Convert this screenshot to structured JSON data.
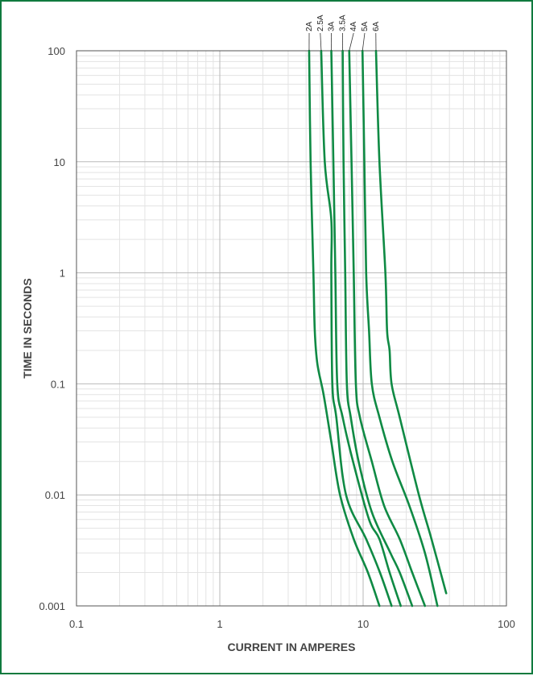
{
  "colors": {
    "border": "#0f7a3e",
    "curve": "#0f8a44",
    "major_grid": "#b9b9b9",
    "minor_grid": "#e3e3e3",
    "text": "#444444"
  },
  "chart_data": {
    "type": "line",
    "xlabel": "CURRENT  IN AMPERES",
    "ylabel": "TIME IN SECONDS",
    "x_scale": "log",
    "y_scale": "log",
    "xlim": [
      0.1,
      100
    ],
    "ylim": [
      0.001,
      100
    ],
    "x_ticks": [
      "0.1",
      "1",
      "10",
      "100"
    ],
    "y_ticks": [
      "0.001",
      "0.01",
      "0.1",
      "1",
      "10",
      "100"
    ],
    "grid": true,
    "series": [
      {
        "name": "2A",
        "points": [
          [
            4.2,
            100
          ],
          [
            4.3,
            10
          ],
          [
            4.5,
            1
          ],
          [
            4.6,
            0.3
          ],
          [
            4.8,
            0.15
          ],
          [
            5.3,
            0.08
          ],
          [
            6.0,
            0.03
          ],
          [
            6.9,
            0.01
          ],
          [
            8.6,
            0.004
          ],
          [
            10.8,
            0.002
          ],
          [
            13.0,
            0.001
          ]
        ]
      },
      {
        "name": "2.5A",
        "points": [
          [
            5.1,
            100
          ],
          [
            5.4,
            10
          ],
          [
            6.0,
            3
          ],
          [
            6.0,
            1
          ],
          [
            6.1,
            0.1
          ],
          [
            6.5,
            0.05
          ],
          [
            7.6,
            0.01
          ],
          [
            10.5,
            0.004
          ],
          [
            13.1,
            0.002
          ],
          [
            15.8,
            0.001
          ]
        ]
      },
      {
        "name": "3A",
        "points": [
          [
            6.0,
            100
          ],
          [
            6.2,
            10
          ],
          [
            6.4,
            1
          ],
          [
            6.6,
            0.1
          ],
          [
            7.2,
            0.05
          ],
          [
            8.5,
            0.02
          ],
          [
            11.0,
            0.006
          ],
          [
            13.0,
            0.004
          ],
          [
            15.3,
            0.002
          ],
          [
            18.3,
            0.001
          ]
        ]
      },
      {
        "name": "3.5A",
        "points": [
          [
            7.2,
            100
          ],
          [
            7.3,
            10
          ],
          [
            7.5,
            1
          ],
          [
            7.7,
            0.1
          ],
          [
            8.2,
            0.05
          ],
          [
            9.3,
            0.02
          ],
          [
            11.5,
            0.007
          ],
          [
            15.5,
            0.003
          ],
          [
            18.0,
            0.002
          ],
          [
            22.0,
            0.001
          ]
        ]
      },
      {
        "name": "4A",
        "points": [
          [
            8.0,
            100
          ],
          [
            8.3,
            10
          ],
          [
            8.6,
            1
          ],
          [
            8.9,
            0.1
          ],
          [
            9.5,
            0.05
          ],
          [
            11.5,
            0.02
          ],
          [
            14.0,
            0.008
          ],
          [
            18.0,
            0.004
          ],
          [
            22.0,
            0.002
          ],
          [
            27.0,
            0.001
          ]
        ]
      },
      {
        "name": "5A",
        "points": [
          [
            9.9,
            100
          ],
          [
            10.2,
            10
          ],
          [
            10.5,
            1
          ],
          [
            11.0,
            0.3
          ],
          [
            11.5,
            0.1
          ],
          [
            13.0,
            0.05
          ],
          [
            16.0,
            0.02
          ],
          [
            21.0,
            0.008
          ],
          [
            27.0,
            0.003
          ],
          [
            33.0,
            0.001
          ]
        ]
      },
      {
        "name": "6A",
        "points": [
          [
            12.3,
            100
          ],
          [
            13.0,
            10
          ],
          [
            14.3,
            1
          ],
          [
            14.7,
            0.3
          ],
          [
            15.3,
            0.2
          ],
          [
            15.8,
            0.1
          ],
          [
            18.0,
            0.05
          ],
          [
            24.5,
            0.01
          ],
          [
            30.0,
            0.004
          ],
          [
            38.0,
            0.0013
          ]
        ]
      }
    ]
  }
}
